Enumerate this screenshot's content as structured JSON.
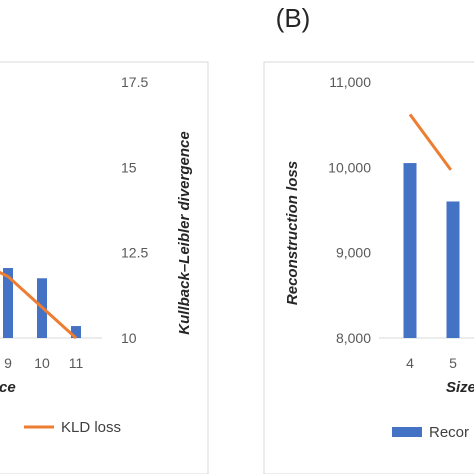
{
  "panel_label": "(B)",
  "chart_data": [
    {
      "type": "bar+line",
      "x_tick_labels": [
        "9",
        "10",
        "11"
      ],
      "xlabel_fragment": "ce",
      "y_right_label": "Kullback–Leibler divergence",
      "y_right_ticks": [
        "10",
        "12.5",
        "15",
        "17.5"
      ],
      "y_right_range": [
        10,
        17.5
      ],
      "bars": [
        {
          "x": "9",
          "value": 12.05
        },
        {
          "x": "10",
          "value": 11.75
        },
        {
          "x": "11",
          "value": 10.35
        }
      ],
      "line_series": {
        "name": "KLD loss",
        "points": [
          {
            "x": 8.6,
            "y": 12.0
          },
          {
            "x": 9,
            "y": 11.8
          },
          {
            "x": 10,
            "y": 10.9
          },
          {
            "x": 11,
            "y": 10.0
          }
        ]
      },
      "legend": [
        {
          "label": "KLD loss",
          "kind": "line",
          "color": "#ED7D31"
        }
      ],
      "colors": {
        "bar": "#4472C4",
        "line": "#ED7D31"
      }
    },
    {
      "type": "bar+line",
      "x_tick_labels": [
        "4",
        "5"
      ],
      "xlabel_fragment": "Size",
      "ylabel": "Reconstruction loss",
      "y_ticks": [
        "8,000",
        "9,000",
        "10,000",
        "11,000"
      ],
      "y_range": [
        8000,
        11000
      ],
      "bars": [
        {
          "x": "4",
          "value": 10050
        },
        {
          "x": "5",
          "value": 9600
        }
      ],
      "line_series": {
        "points": [
          {
            "x": 4,
            "y": 10620
          },
          {
            "x": 4.95,
            "y": 9970
          }
        ]
      },
      "legend": [
        {
          "label": "Recor",
          "kind": "bar",
          "color": "#4472C4"
        }
      ],
      "colors": {
        "bar": "#4472C4",
        "line": "#ED7D31"
      }
    }
  ]
}
